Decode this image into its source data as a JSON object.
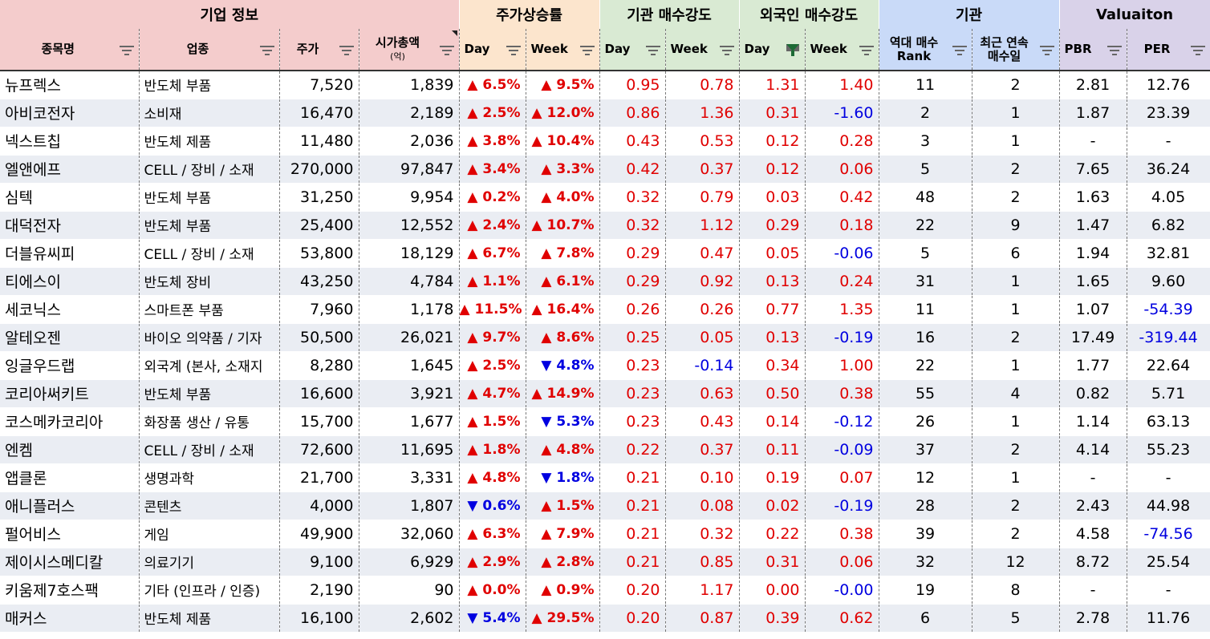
{
  "groups": {
    "company": "기업 정보",
    "price_change": "주가상승률",
    "inst_strength": "기관 매수강도",
    "foreign_strength": "외국인 매수강도",
    "institution": "기관",
    "valuation": "Valuaiton"
  },
  "columns": {
    "name": "종목명",
    "industry": "업종",
    "price": "주가",
    "mcap": "시가총액",
    "mcap_unit": "(억)",
    "day": "Day",
    "week": "Week",
    "rank_line1": "역대 매수",
    "rank_line2": "Rank",
    "streak_line1": "최근 연속",
    "streak_line2": "매수일",
    "pbr": "PBR",
    "per": "PER"
  },
  "colors": {
    "company_header": "#f4cccc",
    "price_header": "#fce5cd",
    "inst_header": "#d9ead3",
    "foreign_header": "#d9ead3",
    "institution_header": "#c9daf8",
    "valuation_header": "#d9d2e9",
    "up": "#e00000",
    "down": "#0000e0",
    "row_alt": "#eaedf3"
  },
  "rows": [
    {
      "name": "뉴프렉스",
      "industry": "반도체 부품",
      "price": "7,520",
      "mcap": "1,839",
      "day": "▲ 6.5%",
      "day_dir": "up",
      "week": "▲ 9.5%",
      "week_dir": "up",
      "inst_day": "0.95",
      "inst_day_dir": "up",
      "inst_week": "0.78",
      "inst_week_dir": "up",
      "for_day": "1.31",
      "for_day_dir": "up",
      "for_week": "1.40",
      "for_week_dir": "up",
      "rank": "11",
      "streak": "2",
      "pbr": "2.81",
      "per": "12.76",
      "per_dir": "blk"
    },
    {
      "name": "아비코전자",
      "industry": "소비재",
      "price": "16,470",
      "mcap": "2,189",
      "day": "▲ 2.5%",
      "day_dir": "up",
      "week": "▲ 12.0%",
      "week_dir": "up",
      "inst_day": "0.86",
      "inst_day_dir": "up",
      "inst_week": "1.36",
      "inst_week_dir": "up",
      "for_day": "0.31",
      "for_day_dir": "up",
      "for_week": "-1.60",
      "for_week_dir": "dn",
      "rank": "2",
      "streak": "1",
      "pbr": "1.87",
      "per": "23.39",
      "per_dir": "blk"
    },
    {
      "name": "넥스트칩",
      "industry": "반도체 제품",
      "price": "11,480",
      "mcap": "2,036",
      "day": "▲ 3.8%",
      "day_dir": "up",
      "week": "▲ 10.4%",
      "week_dir": "up",
      "inst_day": "0.43",
      "inst_day_dir": "up",
      "inst_week": "0.53",
      "inst_week_dir": "up",
      "for_day": "0.12",
      "for_day_dir": "up",
      "for_week": "0.28",
      "for_week_dir": "up",
      "rank": "3",
      "streak": "1",
      "pbr": "-",
      "per": "-",
      "per_dir": "blk"
    },
    {
      "name": "엘앤에프",
      "industry": "CELL / 장비 / 소재",
      "price": "270,000",
      "mcap": "97,847",
      "day": "▲ 3.4%",
      "day_dir": "up",
      "week": "▲ 3.3%",
      "week_dir": "up",
      "inst_day": "0.42",
      "inst_day_dir": "up",
      "inst_week": "0.37",
      "inst_week_dir": "up",
      "for_day": "0.12",
      "for_day_dir": "up",
      "for_week": "0.06",
      "for_week_dir": "up",
      "rank": "5",
      "streak": "2",
      "pbr": "7.65",
      "per": "36.24",
      "per_dir": "blk"
    },
    {
      "name": "심텍",
      "industry": "반도체 부품",
      "price": "31,250",
      "mcap": "9,954",
      "day": "▲ 0.2%",
      "day_dir": "up",
      "week": "▲ 4.0%",
      "week_dir": "up",
      "inst_day": "0.32",
      "inst_day_dir": "up",
      "inst_week": "0.79",
      "inst_week_dir": "up",
      "for_day": "0.03",
      "for_day_dir": "up",
      "for_week": "0.42",
      "for_week_dir": "up",
      "rank": "48",
      "streak": "2",
      "pbr": "1.63",
      "per": "4.05",
      "per_dir": "blk"
    },
    {
      "name": "대덕전자",
      "industry": "반도체 부품",
      "price": "25,400",
      "mcap": "12,552",
      "day": "▲ 2.4%",
      "day_dir": "up",
      "week": "▲ 10.7%",
      "week_dir": "up",
      "inst_day": "0.32",
      "inst_day_dir": "up",
      "inst_week": "1.12",
      "inst_week_dir": "up",
      "for_day": "0.29",
      "for_day_dir": "up",
      "for_week": "0.18",
      "for_week_dir": "up",
      "rank": "22",
      "streak": "9",
      "pbr": "1.47",
      "per": "6.82",
      "per_dir": "blk"
    },
    {
      "name": "더블유씨피",
      "industry": "CELL / 장비 / 소재",
      "price": "53,800",
      "mcap": "18,129",
      "day": "▲ 6.7%",
      "day_dir": "up",
      "week": "▲ 7.8%",
      "week_dir": "up",
      "inst_day": "0.29",
      "inst_day_dir": "up",
      "inst_week": "0.47",
      "inst_week_dir": "up",
      "for_day": "0.05",
      "for_day_dir": "up",
      "for_week": "-0.06",
      "for_week_dir": "dn",
      "rank": "5",
      "streak": "6",
      "pbr": "1.94",
      "per": "32.81",
      "per_dir": "blk"
    },
    {
      "name": "티에스이",
      "industry": "반도체 장비",
      "price": "43,250",
      "mcap": "4,784",
      "day": "▲ 1.1%",
      "day_dir": "up",
      "week": "▲ 6.1%",
      "week_dir": "up",
      "inst_day": "0.29",
      "inst_day_dir": "up",
      "inst_week": "0.92",
      "inst_week_dir": "up",
      "for_day": "0.13",
      "for_day_dir": "up",
      "for_week": "0.24",
      "for_week_dir": "up",
      "rank": "31",
      "streak": "1",
      "pbr": "1.65",
      "per": "9.60",
      "per_dir": "blk"
    },
    {
      "name": "세코닉스",
      "industry": "스마트폰 부품",
      "price": "7,960",
      "mcap": "1,178",
      "day": "▲ 11.5%",
      "day_dir": "up",
      "week": "▲ 16.4%",
      "week_dir": "up",
      "inst_day": "0.26",
      "inst_day_dir": "up",
      "inst_week": "0.26",
      "inst_week_dir": "up",
      "for_day": "0.77",
      "for_day_dir": "up",
      "for_week": "1.35",
      "for_week_dir": "up",
      "rank": "11",
      "streak": "1",
      "pbr": "1.07",
      "per": "-54.39",
      "per_dir": "dn"
    },
    {
      "name": "알테오젠",
      "industry": "바이오 의약품 / 기자",
      "price": "50,500",
      "mcap": "26,021",
      "day": "▲ 9.7%",
      "day_dir": "up",
      "week": "▲ 8.6%",
      "week_dir": "up",
      "inst_day": "0.25",
      "inst_day_dir": "up",
      "inst_week": "0.05",
      "inst_week_dir": "up",
      "for_day": "0.13",
      "for_day_dir": "up",
      "for_week": "-0.19",
      "for_week_dir": "dn",
      "rank": "16",
      "streak": "2",
      "pbr": "17.49",
      "per": "-319.44",
      "per_dir": "dn"
    },
    {
      "name": "잉글우드랩",
      "industry": "외국계 (본사, 소재지",
      "price": "8,280",
      "mcap": "1,645",
      "day": "▲ 2.5%",
      "day_dir": "up",
      "week": "▼ 4.8%",
      "week_dir": "dn",
      "inst_day": "0.23",
      "inst_day_dir": "up",
      "inst_week": "-0.14",
      "inst_week_dir": "dn",
      "for_day": "0.34",
      "for_day_dir": "up",
      "for_week": "1.00",
      "for_week_dir": "up",
      "rank": "22",
      "streak": "1",
      "pbr": "1.77",
      "per": "22.64",
      "per_dir": "blk"
    },
    {
      "name": "코리아써키트",
      "industry": "반도체 부품",
      "price": "16,600",
      "mcap": "3,921",
      "day": "▲ 4.7%",
      "day_dir": "up",
      "week": "▲ 14.9%",
      "week_dir": "up",
      "inst_day": "0.23",
      "inst_day_dir": "up",
      "inst_week": "0.63",
      "inst_week_dir": "up",
      "for_day": "0.50",
      "for_day_dir": "up",
      "for_week": "0.38",
      "for_week_dir": "up",
      "rank": "55",
      "streak": "4",
      "pbr": "0.82",
      "per": "5.71",
      "per_dir": "blk"
    },
    {
      "name": "코스메카코리아",
      "industry": "화장품 생산 / 유통",
      "price": "15,700",
      "mcap": "1,677",
      "day": "▲ 1.5%",
      "day_dir": "up",
      "week": "▼ 5.3%",
      "week_dir": "dn",
      "inst_day": "0.23",
      "inst_day_dir": "up",
      "inst_week": "0.43",
      "inst_week_dir": "up",
      "for_day": "0.14",
      "for_day_dir": "up",
      "for_week": "-0.12",
      "for_week_dir": "dn",
      "rank": "26",
      "streak": "1",
      "pbr": "1.14",
      "per": "63.13",
      "per_dir": "blk"
    },
    {
      "name": "엔켐",
      "industry": "CELL / 장비 / 소재",
      "price": "72,600",
      "mcap": "11,695",
      "day": "▲ 1.8%",
      "day_dir": "up",
      "week": "▲ 4.8%",
      "week_dir": "up",
      "inst_day": "0.22",
      "inst_day_dir": "up",
      "inst_week": "0.37",
      "inst_week_dir": "up",
      "for_day": "0.11",
      "for_day_dir": "up",
      "for_week": "-0.09",
      "for_week_dir": "dn",
      "rank": "37",
      "streak": "2",
      "pbr": "4.14",
      "per": "55.23",
      "per_dir": "blk"
    },
    {
      "name": "앱클론",
      "industry": "생명과학",
      "price": "21,700",
      "mcap": "3,331",
      "day": "▲ 4.8%",
      "day_dir": "up",
      "week": "▼ 1.8%",
      "week_dir": "dn",
      "inst_day": "0.21",
      "inst_day_dir": "up",
      "inst_week": "0.10",
      "inst_week_dir": "up",
      "for_day": "0.19",
      "for_day_dir": "up",
      "for_week": "0.07",
      "for_week_dir": "up",
      "rank": "12",
      "streak": "1",
      "pbr": "-",
      "per": "-",
      "per_dir": "blk"
    },
    {
      "name": "애니플러스",
      "industry": "콘텐츠",
      "price": "4,000",
      "mcap": "1,807",
      "day": "▼ 0.6%",
      "day_dir": "dn",
      "week": "▲ 1.5%",
      "week_dir": "up",
      "inst_day": "0.21",
      "inst_day_dir": "up",
      "inst_week": "0.08",
      "inst_week_dir": "up",
      "for_day": "0.02",
      "for_day_dir": "up",
      "for_week": "-0.19",
      "for_week_dir": "dn",
      "rank": "28",
      "streak": "2",
      "pbr": "2.43",
      "per": "44.98",
      "per_dir": "blk"
    },
    {
      "name": "펄어비스",
      "industry": "게임",
      "price": "49,900",
      "mcap": "32,060",
      "day": "▲ 6.3%",
      "day_dir": "up",
      "week": "▲ 7.9%",
      "week_dir": "up",
      "inst_day": "0.21",
      "inst_day_dir": "up",
      "inst_week": "0.32",
      "inst_week_dir": "up",
      "for_day": "0.22",
      "for_day_dir": "up",
      "for_week": "0.38",
      "for_week_dir": "up",
      "rank": "39",
      "streak": "2",
      "pbr": "4.58",
      "per": "-74.56",
      "per_dir": "dn"
    },
    {
      "name": "제이시스메디칼",
      "industry": "의료기기",
      "price": "9,100",
      "mcap": "6,929",
      "day": "▲ 2.9%",
      "day_dir": "up",
      "week": "▲ 2.8%",
      "week_dir": "up",
      "inst_day": "0.21",
      "inst_day_dir": "up",
      "inst_week": "0.85",
      "inst_week_dir": "up",
      "for_day": "0.31",
      "for_day_dir": "up",
      "for_week": "0.06",
      "for_week_dir": "up",
      "rank": "32",
      "streak": "12",
      "pbr": "8.72",
      "per": "25.54",
      "per_dir": "blk"
    },
    {
      "name": "키움제7호스팩",
      "industry": "기타 (인프라 / 인증)",
      "price": "2,190",
      "mcap": "90",
      "day": "▲ 0.0%",
      "day_dir": "up",
      "week": "▲ 0.9%",
      "week_dir": "up",
      "inst_day": "0.20",
      "inst_day_dir": "up",
      "inst_week": "1.17",
      "inst_week_dir": "up",
      "for_day": "0.00",
      "for_day_dir": "up",
      "for_week": "-0.00",
      "for_week_dir": "dn",
      "rank": "19",
      "streak": "8",
      "pbr": "-",
      "per": "-",
      "per_dir": "blk"
    },
    {
      "name": "매커스",
      "industry": "반도체 제품",
      "price": "16,100",
      "mcap": "2,602",
      "day": "▼ 5.4%",
      "day_dir": "dn",
      "week": "▲ 29.5%",
      "week_dir": "up",
      "inst_day": "0.20",
      "inst_day_dir": "up",
      "inst_week": "0.87",
      "inst_week_dir": "up",
      "for_day": "0.39",
      "for_day_dir": "up",
      "for_week": "0.62",
      "for_week_dir": "up",
      "rank": "6",
      "streak": "5",
      "pbr": "2.78",
      "per": "11.76",
      "per_dir": "blk"
    }
  ]
}
